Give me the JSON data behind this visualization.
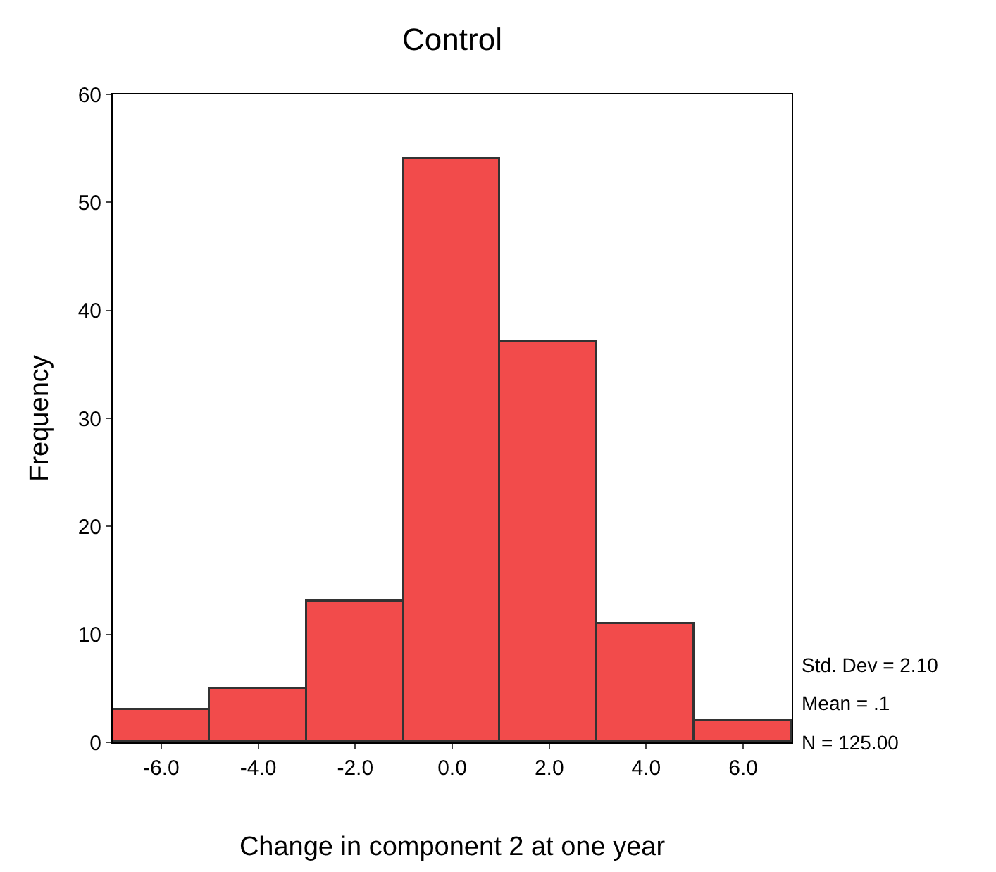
{
  "chart_data": {
    "type": "histogram",
    "title": "Control",
    "xlabel": "Change in component 2 at one year",
    "ylabel": "Frequency",
    "bins": [
      -7,
      -5,
      -3,
      -1,
      1,
      3,
      5,
      7
    ],
    "values": [
      3,
      5,
      13,
      54,
      37,
      11,
      2
    ],
    "color": "#f24b4b",
    "xlim": [
      -7,
      7
    ],
    "xticks": [
      {
        "value": -6,
        "label": "-6.0"
      },
      {
        "value": -4,
        "label": "-4.0"
      },
      {
        "value": -2,
        "label": "-2.0"
      },
      {
        "value": 0,
        "label": "0.0"
      },
      {
        "value": 2,
        "label": "2.0"
      },
      {
        "value": 4,
        "label": "4.0"
      },
      {
        "value": 6,
        "label": "6.0"
      }
    ],
    "ylim": [
      0,
      60
    ],
    "yticks": [
      0,
      10,
      20,
      30,
      40,
      50,
      60
    ],
    "annotations": [
      "Std. Dev = 2.10",
      "Mean = .1",
      "N = 125.00"
    ]
  }
}
